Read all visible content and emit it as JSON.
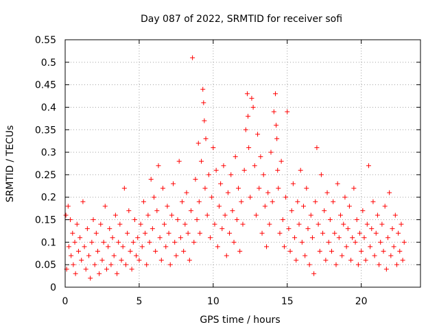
{
  "chart_data": {
    "type": "scatter",
    "title": "Day 087 of 2022, SRMTID for receiver sofi",
    "xlabel": "GPS time / hours",
    "ylabel": "SRMTID / TECUs",
    "xlim": [
      0,
      24
    ],
    "ylim": [
      0,
      0.55
    ],
    "xticks": [
      0,
      5,
      10,
      15,
      20
    ],
    "xtick_labels": [
      "0",
      "5",
      "10",
      "15",
      "20"
    ],
    "yticks": [
      0,
      0.05,
      0.1,
      0.15,
      0.2,
      0.25,
      0.3,
      0.35,
      0.4,
      0.45,
      0.5,
      0.55
    ],
    "ytick_labels": [
      "0",
      "0.05",
      "0.1",
      "0.15",
      "0.2",
      "0.25",
      "0.3",
      "0.35",
      "0.4",
      "0.45",
      "0.5",
      "0.55"
    ],
    "grid": true,
    "marker": "+",
    "color": "#ff0000",
    "series": [
      {
        "points": [
          [
            0.05,
            0.16
          ],
          [
            0.1,
            0.04
          ],
          [
            0.2,
            0.18
          ],
          [
            0.25,
            0.09
          ],
          [
            0.35,
            0.15
          ],
          [
            0.4,
            0.07
          ],
          [
            0.5,
            0.12
          ],
          [
            0.55,
            0.05
          ],
          [
            0.65,
            0.1
          ],
          [
            0.7,
            0.03
          ],
          [
            0.8,
            0.14
          ],
          [
            0.9,
            0.08
          ],
          [
            1.0,
            0.11
          ],
          [
            1.1,
            0.06
          ],
          [
            1.2,
            0.19
          ],
          [
            1.3,
            0.09
          ],
          [
            1.4,
            0.04
          ],
          [
            1.5,
            0.13
          ],
          [
            1.6,
            0.07
          ],
          [
            1.7,
            0.02
          ],
          [
            1.8,
            0.1
          ],
          [
            1.9,
            0.15
          ],
          [
            2.0,
            0.05
          ],
          [
            2.1,
            0.12
          ],
          [
            2.2,
            0.08
          ],
          [
            2.3,
            0.03
          ],
          [
            2.4,
            0.14
          ],
          [
            2.5,
            0.06
          ],
          [
            2.6,
            0.1
          ],
          [
            2.7,
            0.18
          ],
          [
            2.8,
            0.04
          ],
          [
            2.9,
            0.09
          ],
          [
            3.0,
            0.13
          ],
          [
            3.1,
            0.05
          ],
          [
            3.2,
            0.11
          ],
          [
            3.3,
            0.07
          ],
          [
            3.4,
            0.16
          ],
          [
            3.5,
            0.03
          ],
          [
            3.6,
            0.1
          ],
          [
            3.7,
            0.14
          ],
          [
            3.8,
            0.06
          ],
          [
            3.9,
            0.09
          ],
          [
            4.0,
            0.22
          ],
          [
            4.1,
            0.05
          ],
          [
            4.2,
            0.12
          ],
          [
            4.3,
            0.17
          ],
          [
            4.4,
            0.08
          ],
          [
            4.5,
            0.04
          ],
          [
            4.6,
            0.1
          ],
          [
            4.7,
            0.15
          ],
          [
            4.8,
            0.07
          ],
          [
            4.9,
            0.11
          ],
          [
            5.0,
            0.06
          ],
          [
            5.1,
            0.14
          ],
          [
            5.2,
            0.09
          ],
          [
            5.3,
            0.19
          ],
          [
            5.4,
            0.12
          ],
          [
            5.5,
            0.05
          ],
          [
            5.6,
            0.16
          ],
          [
            5.7,
            0.1
          ],
          [
            5.8,
            0.24
          ],
          [
            5.9,
            0.13
          ],
          [
            6.0,
            0.2
          ],
          [
            6.1,
            0.08
          ],
          [
            6.2,
            0.17
          ],
          [
            6.3,
            0.27
          ],
          [
            6.4,
            0.11
          ],
          [
            6.5,
            0.06
          ],
          [
            6.6,
            0.22
          ],
          [
            6.7,
            0.14
          ],
          [
            6.8,
            0.09
          ],
          [
            6.9,
            0.18
          ],
          [
            7.0,
            0.12
          ],
          [
            7.1,
            0.05
          ],
          [
            7.2,
            0.16
          ],
          [
            7.3,
            0.23
          ],
          [
            7.4,
            0.1
          ],
          [
            7.5,
            0.07
          ],
          [
            7.6,
            0.15
          ],
          [
            7.7,
            0.28
          ],
          [
            7.8,
            0.11
          ],
          [
            7.9,
            0.19
          ],
          [
            8.0,
            0.08
          ],
          [
            8.1,
            0.14
          ],
          [
            8.2,
            0.21
          ],
          [
            8.3,
            0.12
          ],
          [
            8.4,
            0.06
          ],
          [
            8.5,
            0.17
          ],
          [
            8.6,
            0.51
          ],
          [
            8.7,
            0.1
          ],
          [
            8.8,
            0.24
          ],
          [
            8.9,
            0.15
          ],
          [
            9.0,
            0.32
          ],
          [
            9.05,
            0.19
          ],
          [
            9.1,
            0.12
          ],
          [
            9.2,
            0.28
          ],
          [
            9.3,
            0.44
          ],
          [
            9.35,
            0.41
          ],
          [
            9.4,
            0.37
          ],
          [
            9.45,
            0.22
          ],
          [
            9.5,
            0.33
          ],
          [
            9.6,
            0.16
          ],
          [
            9.7,
            0.25
          ],
          [
            9.8,
            0.11
          ],
          [
            9.9,
            0.2
          ],
          [
            10.0,
            0.31
          ],
          [
            10.1,
            0.14
          ],
          [
            10.2,
            0.26
          ],
          [
            10.3,
            0.09
          ],
          [
            10.4,
            0.18
          ],
          [
            10.5,
            0.23
          ],
          [
            10.6,
            0.13
          ],
          [
            10.7,
            0.27
          ],
          [
            10.8,
            0.16
          ],
          [
            10.9,
            0.07
          ],
          [
            11.0,
            0.21
          ],
          [
            11.1,
            0.12
          ],
          [
            11.2,
            0.25
          ],
          [
            11.3,
            0.17
          ],
          [
            11.4,
            0.1
          ],
          [
            11.5,
            0.29
          ],
          [
            11.6,
            0.15
          ],
          [
            11.7,
            0.22
          ],
          [
            11.8,
            0.08
          ],
          [
            11.9,
            0.19
          ],
          [
            12.0,
            0.14
          ],
          [
            12.1,
            0.26
          ],
          [
            12.2,
            0.35
          ],
          [
            12.3,
            0.43
          ],
          [
            12.35,
            0.38
          ],
          [
            12.4,
            0.31
          ],
          [
            12.5,
            0.2
          ],
          [
            12.6,
            0.42
          ],
          [
            12.7,
            0.4
          ],
          [
            12.8,
            0.27
          ],
          [
            12.9,
            0.16
          ],
          [
            13.0,
            0.34
          ],
          [
            13.1,
            0.22
          ],
          [
            13.2,
            0.29
          ],
          [
            13.3,
            0.12
          ],
          [
            13.4,
            0.25
          ],
          [
            13.5,
            0.18
          ],
          [
            13.6,
            0.09
          ],
          [
            13.7,
            0.21
          ],
          [
            13.8,
            0.14
          ],
          [
            13.9,
            0.3
          ],
          [
            14.0,
            0.19
          ],
          [
            14.1,
            0.39
          ],
          [
            14.2,
            0.43
          ],
          [
            14.25,
            0.36
          ],
          [
            14.3,
            0.33
          ],
          [
            14.35,
            0.26
          ],
          [
            14.4,
            0.22
          ],
          [
            14.5,
            0.12
          ],
          [
            14.6,
            0.28
          ],
          [
            14.7,
            0.15
          ],
          [
            14.8,
            0.09
          ],
          [
            14.9,
            0.2
          ],
          [
            15.0,
            0.39
          ],
          [
            15.1,
            0.13
          ],
          [
            15.2,
            0.08
          ],
          [
            15.3,
            0.17
          ],
          [
            15.4,
            0.23
          ],
          [
            15.5,
            0.11
          ],
          [
            15.6,
            0.06
          ],
          [
            15.7,
            0.19
          ],
          [
            15.8,
            0.14
          ],
          [
            15.9,
            0.26
          ],
          [
            16.0,
            0.1
          ],
          [
            16.1,
            0.18
          ],
          [
            16.2,
            0.07
          ],
          [
            16.3,
            0.22
          ],
          [
            16.4,
            0.13
          ],
          [
            16.5,
            0.05
          ],
          [
            16.6,
            0.16
          ],
          [
            16.7,
            0.11
          ],
          [
            16.8,
            0.03
          ],
          [
            16.9,
            0.19
          ],
          [
            17.0,
            0.31
          ],
          [
            17.1,
            0.14
          ],
          [
            17.2,
            0.08
          ],
          [
            17.3,
            0.25
          ],
          [
            17.4,
            0.12
          ],
          [
            17.5,
            0.17
          ],
          [
            17.6,
            0.06
          ],
          [
            17.7,
            0.21
          ],
          [
            17.8,
            0.1
          ],
          [
            17.9,
            0.15
          ],
          [
            18.0,
            0.08
          ],
          [
            18.1,
            0.19
          ],
          [
            18.2,
            0.12
          ],
          [
            18.3,
            0.05
          ],
          [
            18.4,
            0.23
          ],
          [
            18.5,
            0.11
          ],
          [
            18.6,
            0.16
          ],
          [
            18.7,
            0.07
          ],
          [
            18.8,
            0.14
          ],
          [
            18.9,
            0.2
          ],
          [
            19.0,
            0.09
          ],
          [
            19.1,
            0.13
          ],
          [
            19.2,
            0.18
          ],
          [
            19.3,
            0.06
          ],
          [
            19.4,
            0.11
          ],
          [
            19.5,
            0.22
          ],
          [
            19.6,
            0.1
          ],
          [
            19.7,
            0.15
          ],
          [
            19.8,
            0.05
          ],
          [
            19.9,
            0.12
          ],
          [
            20.0,
            0.08
          ],
          [
            20.1,
            0.17
          ],
          [
            20.2,
            0.11
          ],
          [
            20.3,
            0.06
          ],
          [
            20.4,
            0.14
          ],
          [
            20.5,
            0.27
          ],
          [
            20.6,
            0.09
          ],
          [
            20.7,
            0.13
          ],
          [
            20.8,
            0.19
          ],
          [
            20.9,
            0.07
          ],
          [
            21.0,
            0.12
          ],
          [
            21.1,
            0.16
          ],
          [
            21.2,
            0.05
          ],
          [
            21.3,
            0.1
          ],
          [
            21.4,
            0.14
          ],
          [
            21.5,
            0.08
          ],
          [
            21.6,
            0.18
          ],
          [
            21.7,
            0.04
          ],
          [
            21.8,
            0.11
          ],
          [
            21.9,
            0.21
          ],
          [
            22.0,
            0.07
          ],
          [
            22.1,
            0.13
          ],
          [
            22.2,
            0.09
          ],
          [
            22.3,
            0.16
          ],
          [
            22.4,
            0.05
          ],
          [
            22.5,
            0.12
          ],
          [
            22.6,
            0.08
          ],
          [
            22.7,
            0.14
          ],
          [
            22.8,
            0.06
          ],
          [
            22.9,
            0.1
          ]
        ]
      }
    ]
  }
}
